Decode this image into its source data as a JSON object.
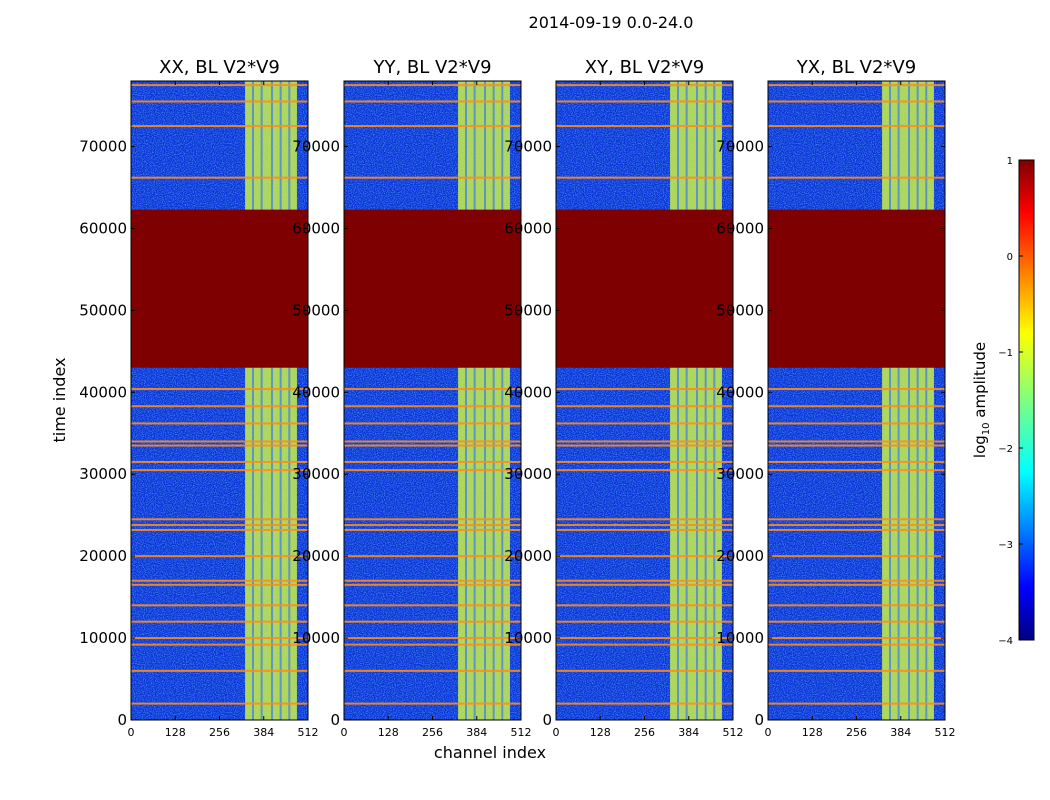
{
  "chart_data": {
    "type": "heatmap",
    "suptitle": "2014-09-19 0.0-24.0",
    "xlabel": "channel index",
    "ylabel": "time index",
    "xlim": [
      0,
      512
    ],
    "ylim": [
      0,
      78000
    ],
    "x_ticks": [
      0,
      128,
      256,
      384,
      512
    ],
    "y_ticks": [
      0,
      10000,
      20000,
      30000,
      40000,
      50000,
      60000,
      70000
    ],
    "x_tick_labels": [
      "0",
      "128",
      "256",
      "384",
      "512"
    ],
    "y_tick_labels": [
      "0",
      "10000",
      "20000",
      "30000",
      "40000",
      "50000",
      "60000",
      "70000"
    ],
    "panels": [
      {
        "title": "XX, BL V2*V9",
        "polarization": "XX"
      },
      {
        "title": "YY, BL V2*V9",
        "polarization": "YY"
      },
      {
        "title": "XY, BL V2*V9",
        "polarization": "XY"
      },
      {
        "title": "YX, BL V2*V9",
        "polarization": "YX"
      }
    ],
    "saturated_block": {
      "time_start": 43000,
      "time_end": 62300,
      "log10_amplitude": 1
    },
    "bright_channel_band": {
      "channel_start": 330,
      "channel_end": 480
    },
    "flagged_rows": [
      2000,
      6000,
      9200,
      10000,
      12000,
      14000,
      16500,
      17000,
      20000,
      23200,
      23800,
      24500,
      30500,
      31500,
      33500,
      34000,
      36200,
      38300,
      40400,
      66200,
      72500,
      75500,
      77500
    ],
    "colorbar": {
      "label": "log",
      "label_sub": "10",
      "label_rest": " amplitude",
      "range": [
        -4,
        1
      ],
      "ticks": [
        1,
        0,
        -1,
        -2,
        -3,
        -4
      ],
      "tick_labels": [
        "1",
        "0",
        "−1",
        "−2",
        "−3",
        "−4"
      ],
      "colormap": "jet"
    }
  }
}
